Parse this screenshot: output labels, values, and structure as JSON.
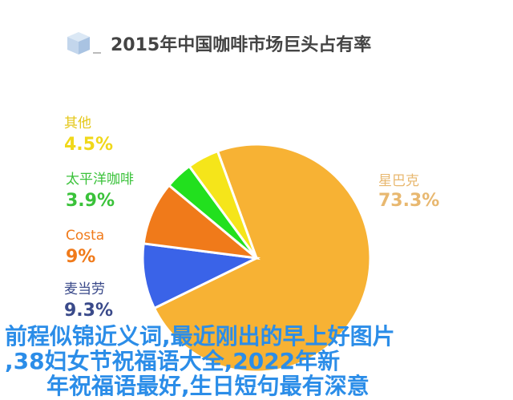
{
  "chart_data": {
    "type": "pie",
    "title": "2015年中国咖啡市场巨头占有率",
    "slices": [
      {
        "label": "星巴克",
        "value": 73.3,
        "value_label": "73.3%",
        "color": "#f7b234"
      },
      {
        "label": "麦当劳",
        "value": 9.3,
        "value_label": "9.3%",
        "color": "#3a63e8"
      },
      {
        "label": "Costa",
        "value": 9,
        "value_label": "9%",
        "color": "#f07a1a"
      },
      {
        "label": "太平洋咖啡",
        "value": 3.9,
        "value_label": "3.9%",
        "color": "#22e01e"
      },
      {
        "label": "其他",
        "value": 4.5,
        "value_label": "4.5%",
        "color": "#f5e51a"
      }
    ]
  },
  "overlay_text": [
    "前程似锦近义词,最近刚出的早上好图片",
    ",38妇女节祝福语大全,2022年新",
    "年祝福语最好,生日短句最有深意"
  ]
}
